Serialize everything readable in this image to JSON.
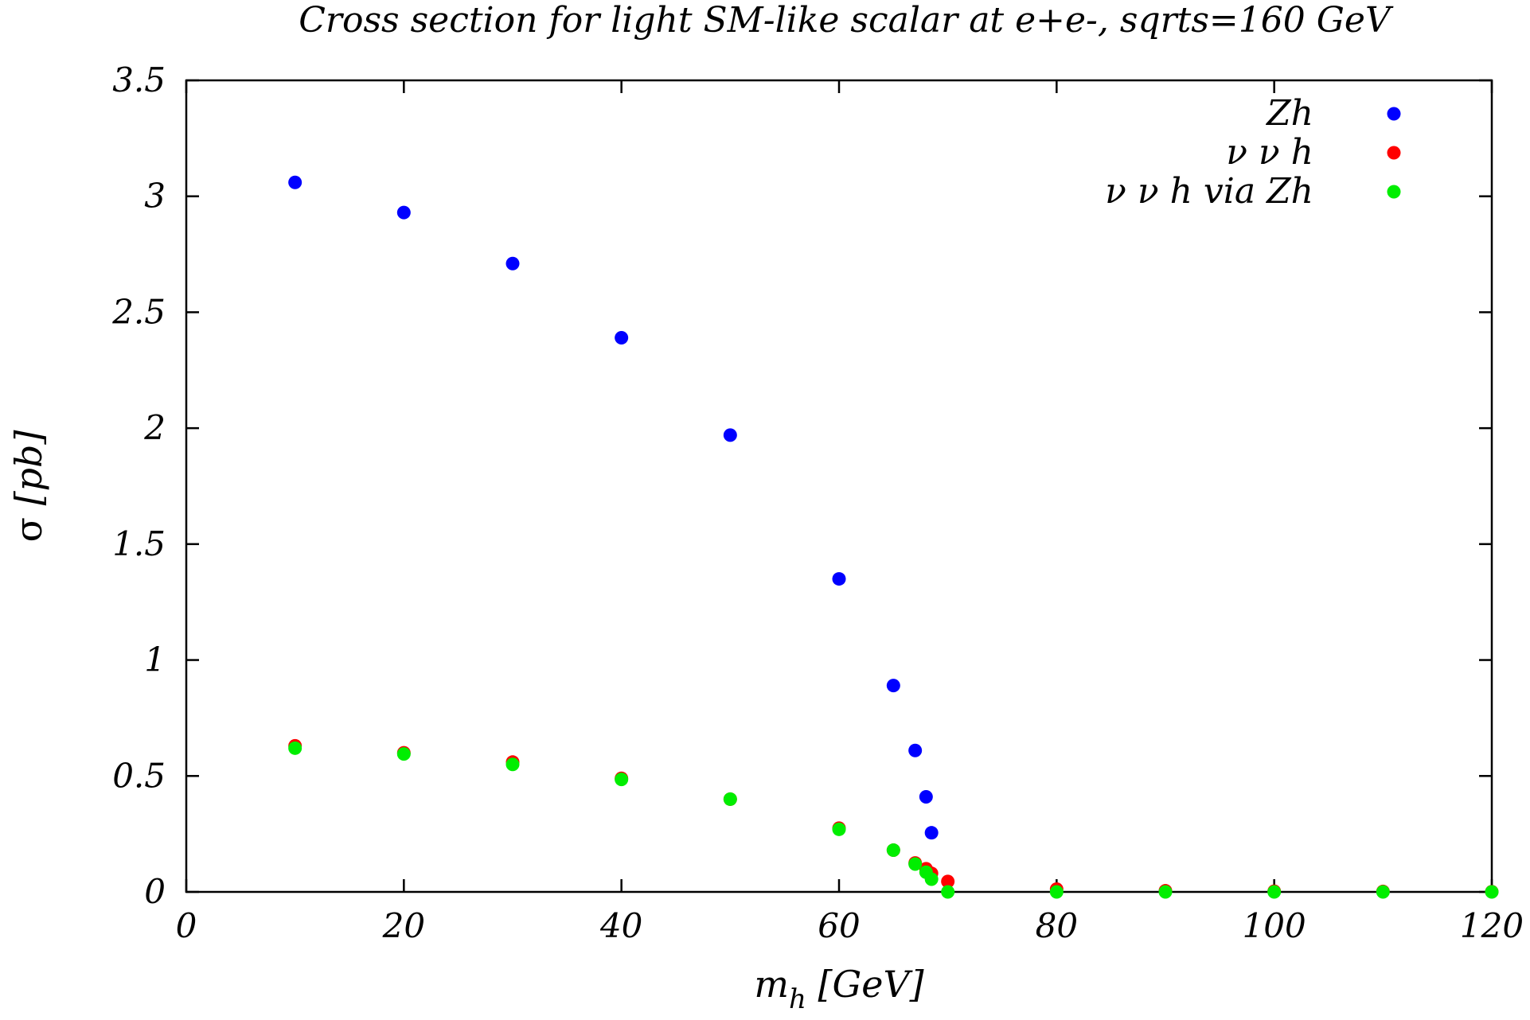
{
  "chart_data": {
    "type": "scatter",
    "title": "Cross section for light SM-like scalar at e+e-, sqrts=160 GeV",
    "xlabel_main": "m",
    "xlabel_sub": "h",
    "xlabel_rest": " [GeV]",
    "ylabel_symbol": "σ",
    "ylabel_rest": " [pb]",
    "xlim": [
      0,
      120
    ],
    "ylim": [
      0,
      3.5
    ],
    "xticks": [
      0,
      20,
      40,
      60,
      80,
      100,
      120
    ],
    "xtick_labels": [
      "0",
      "20",
      "40",
      "60",
      "80",
      "100",
      "120"
    ],
    "yticks": [
      0,
      0.5,
      1,
      1.5,
      2,
      2.5,
      3,
      3.5
    ],
    "ytick_labels": [
      "0",
      "0.5",
      "1",
      "1.5",
      "2",
      "2.5",
      "3",
      "3.5"
    ],
    "legend_position": "top-right",
    "grid": false,
    "series": [
      {
        "name": "Zh",
        "color": "#0000ff",
        "points": [
          [
            10,
            3.06
          ],
          [
            20,
            2.93
          ],
          [
            30,
            2.71
          ],
          [
            40,
            2.39
          ],
          [
            50,
            1.97
          ],
          [
            60,
            1.35
          ],
          [
            65,
            0.89
          ],
          [
            67,
            0.61
          ],
          [
            68,
            0.41
          ],
          [
            68.5,
            0.255
          ]
        ]
      },
      {
        "name": "ν ν h",
        "color": "#ff0000",
        "points": [
          [
            10,
            0.63
          ],
          [
            20,
            0.6
          ],
          [
            30,
            0.56
          ],
          [
            40,
            0.49
          ],
          [
            50,
            0.4
          ],
          [
            60,
            0.275
          ],
          [
            65,
            0.18
          ],
          [
            67,
            0.125
          ],
          [
            68,
            0.1
          ],
          [
            68.5,
            0.08
          ],
          [
            70,
            0.045
          ],
          [
            80,
            0.012
          ],
          [
            90,
            0.005
          ],
          [
            100,
            0.003
          ],
          [
            110,
            0.002
          ],
          [
            120,
            0.001
          ]
        ]
      },
      {
        "name": "ν ν h via Zh",
        "color": "#00ee00",
        "points": [
          [
            10,
            0.62
          ],
          [
            20,
            0.595
          ],
          [
            30,
            0.55
          ],
          [
            40,
            0.485
          ],
          [
            50,
            0.4
          ],
          [
            60,
            0.27
          ],
          [
            65,
            0.18
          ],
          [
            67,
            0.12
          ],
          [
            68,
            0.085
          ],
          [
            68.5,
            0.055
          ],
          [
            70,
            0.0
          ],
          [
            80,
            0.0
          ],
          [
            90,
            0.0
          ],
          [
            100,
            0.0
          ],
          [
            110,
            0.0
          ],
          [
            120,
            0.0
          ]
        ]
      }
    ]
  }
}
